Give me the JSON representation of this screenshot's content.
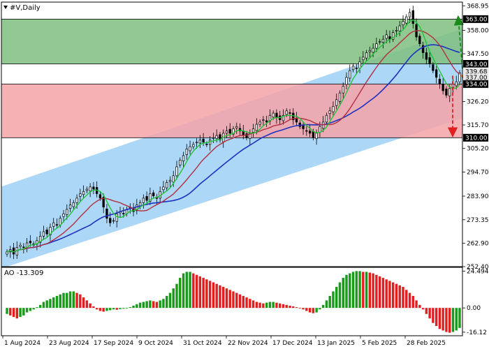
{
  "chart_data": {
    "type": "candlestick",
    "title": "#V,Daily",
    "price_axis": {
      "ylim": [
        252.4,
        370.6
      ],
      "ticks": [
        "368.95",
        "358.00",
        "347.50",
        "336.85",
        "326.20",
        "315.70",
        "305.20",
        "294.70",
        "283.90",
        "273.35",
        "262.90",
        "252.40"
      ]
    },
    "x_axis": {
      "labels": [
        "1 Aug 2024",
        "23 Aug 2024",
        "17 Sep 2024",
        "9 Oct 2024",
        "31 Oct 2024",
        "22 Nov 2024",
        "17 Dec 2024",
        "13 Jan 2025",
        "5 Feb 2025",
        "28 Feb 2025"
      ]
    },
    "zones": [
      {
        "name": "resistance-zone",
        "top": 363.0,
        "bottom": 343.0,
        "color": "#7fbf7f"
      },
      {
        "name": "support-zone",
        "top": 334.0,
        "bottom": 310.0,
        "color": "#f5a3a8"
      }
    ],
    "level_labels": [
      {
        "value": 363.0,
        "text": "363.00",
        "bg": "#000000",
        "fg": "#ffffff"
      },
      {
        "value": 343.0,
        "text": "343.00",
        "bg": "#000000",
        "fg": "#ffffff"
      },
      {
        "value": 339.68,
        "text": "339.68",
        "bg": "#e8e8e8",
        "fg": "#000000"
      },
      {
        "value": 337.0,
        "text": "337.00",
        "bg": "#e8e8e8",
        "fg": "#000000"
      },
      {
        "value": 334.0,
        "text": "334.00",
        "bg": "#000000",
        "fg": "#ffffff"
      },
      {
        "value": 310.0,
        "text": "310.00",
        "bg": "#000000",
        "fg": "#ffffff"
      }
    ],
    "channel": {
      "color": "#9fd0f5",
      "upper": [
        [
          0,
          289.0
        ],
        [
          158,
          369.5
        ]
      ],
      "lower": [
        [
          0,
          252.4
        ],
        [
          158,
          329.0
        ]
      ]
    },
    "close": [
      259,
      260,
      258,
      261,
      262,
      261,
      263,
      263,
      262,
      264,
      266,
      268,
      267,
      270,
      272,
      271,
      274,
      276,
      278,
      280,
      281,
      283,
      285,
      286,
      287,
      288,
      287,
      285,
      283,
      279,
      274,
      272,
      273,
      276,
      277,
      276,
      278,
      279,
      277,
      280,
      281,
      283,
      282,
      285,
      284,
      283,
      286,
      288,
      290,
      291,
      293,
      297,
      300,
      302,
      305,
      306,
      307,
      308,
      309,
      308,
      307,
      309,
      310,
      311,
      309,
      312,
      313,
      312,
      314,
      315,
      313,
      311,
      310,
      312,
      314,
      316,
      317,
      318,
      317,
      320,
      321,
      319,
      318,
      320,
      322,
      321,
      318,
      317,
      315,
      314,
      313,
      312,
      310,
      312,
      315,
      317,
      320,
      322,
      324,
      327,
      330,
      333,
      337,
      340,
      342,
      341,
      344,
      346,
      348,
      349,
      350,
      352,
      353,
      354,
      356,
      354,
      357,
      358,
      360,
      362,
      364,
      366,
      361,
      355,
      352,
      348,
      345,
      343,
      340,
      337,
      334,
      331,
      329,
      332,
      334,
      335,
      339
    ],
    "ma_fast": {
      "color": "#22c33a",
      "period": 5
    },
    "ma_mid": {
      "color": "#b03040",
      "period": 13
    },
    "ma_slow": {
      "color": "#2030c0",
      "period": 26
    },
    "forecast": {
      "up_target": 363.0,
      "down_target": 310.0,
      "up_color": "#1a8a1a",
      "down_color": "#e02020"
    },
    "ao": {
      "label": "AO -13.309",
      "ylim": [
        -18.5,
        27.0
      ],
      "ticks": [
        "24.494",
        "0.00",
        "-16.12"
      ],
      "values": [
        -4,
        -5,
        -6,
        -7,
        -6,
        -5,
        -3,
        -2,
        -1,
        0.5,
        2,
        4,
        5,
        6,
        7,
        8,
        9,
        10,
        10,
        11,
        11,
        10,
        9,
        7,
        5,
        3,
        1,
        -1,
        -2,
        -2.5,
        -2,
        -1.5,
        -1,
        -1.2,
        -0.8,
        -0.5,
        -0.3,
        0.5,
        1.5,
        2.5,
        3.5,
        4,
        4.5,
        5,
        4.5,
        4,
        5,
        6,
        8,
        10,
        13,
        16,
        20,
        23,
        24,
        24,
        23,
        22,
        21,
        20,
        19,
        18,
        17,
        16,
        15,
        14,
        13,
        12,
        11,
        10,
        9,
        8,
        7,
        6,
        5,
        4,
        3.5,
        3,
        3.5,
        4,
        4,
        3.5,
        3,
        2.5,
        2,
        1.5,
        1,
        0.5,
        0,
        -1,
        -2,
        -3,
        -3.5,
        -3,
        -1,
        2,
        5,
        8,
        11,
        14,
        17,
        20,
        22,
        23,
        24,
        24.5,
        24.5,
        24,
        24,
        23.5,
        23,
        22,
        21,
        20,
        19,
        18,
        17,
        16,
        15,
        14,
        12,
        10,
        8,
        5,
        2,
        -1,
        -4,
        -7,
        -10,
        -12,
        -14,
        -15,
        -16,
        -16.5,
        -16,
        -15,
        -13.309
      ]
    }
  }
}
